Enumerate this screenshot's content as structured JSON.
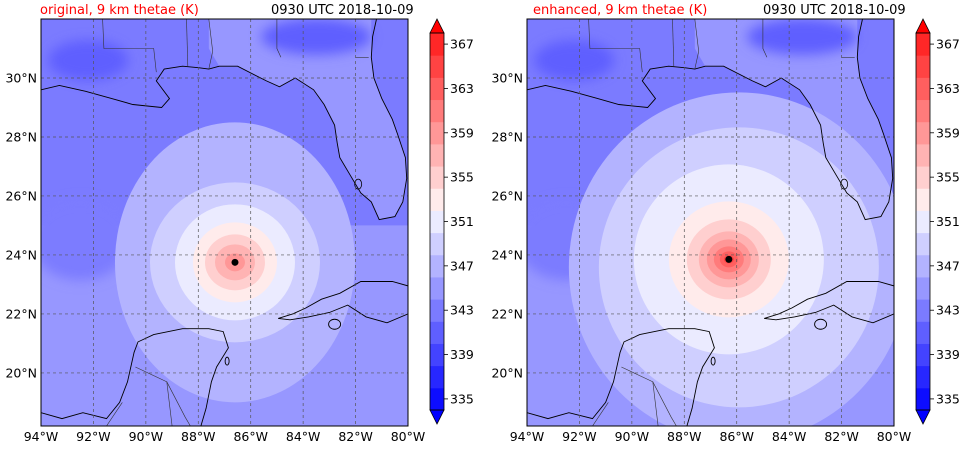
{
  "panels": [
    {
      "title_left": "original, 9 km thetae (K)",
      "title_right": "0930 UTC 2018-10-09",
      "storm_center": {
        "lon": -86.6,
        "lat": 23.75
      },
      "core_max": 360
    },
    {
      "title_left": "enhanced, 9 km thetae (K)",
      "title_right": "0930 UTC 2018-10-09",
      "storm_center": {
        "lon": -86.3,
        "lat": 23.85
      },
      "core_max": 365
    }
  ],
  "map": {
    "lon_range": [
      -94,
      -80
    ],
    "lat_range": [
      18.2,
      32
    ],
    "lon_ticks": [
      -94,
      -92,
      -90,
      -88,
      -86,
      -84,
      -82,
      -80
    ],
    "lon_labels": [
      "94°W",
      "92°W",
      "90°W",
      "88°W",
      "86°W",
      "84°W",
      "82°W",
      "80°W"
    ],
    "lat_ticks": [
      20,
      22,
      24,
      26,
      28,
      30
    ],
    "lat_labels": [
      "20°N",
      "22°N",
      "24°N",
      "26°N",
      "28°N",
      "30°N"
    ],
    "gridlines": "dashed"
  },
  "colorbar": {
    "levels": [
      335,
      337,
      339,
      341,
      343,
      345,
      347,
      349,
      351,
      353,
      355,
      357,
      359,
      361,
      363,
      365,
      367,
      369
    ],
    "tick_values": [
      335,
      339,
      343,
      347,
      351,
      355,
      359,
      363,
      367
    ],
    "tick_labels": [
      "335",
      "339",
      "343",
      "347",
      "351",
      "355",
      "359",
      "363",
      "367"
    ],
    "colors": [
      "#0d0dff",
      "#2727ff",
      "#4343ff",
      "#5f5fff",
      "#7b7bff",
      "#9797ff",
      "#b3b3ff",
      "#cfcfff",
      "#ebebff",
      "#ffebeb",
      "#ffcfcf",
      "#ffb3b3",
      "#ff9797",
      "#ff7b7b",
      "#ff5f5f",
      "#ff4343",
      "#ff2727"
    ],
    "extend": "both"
  }
}
